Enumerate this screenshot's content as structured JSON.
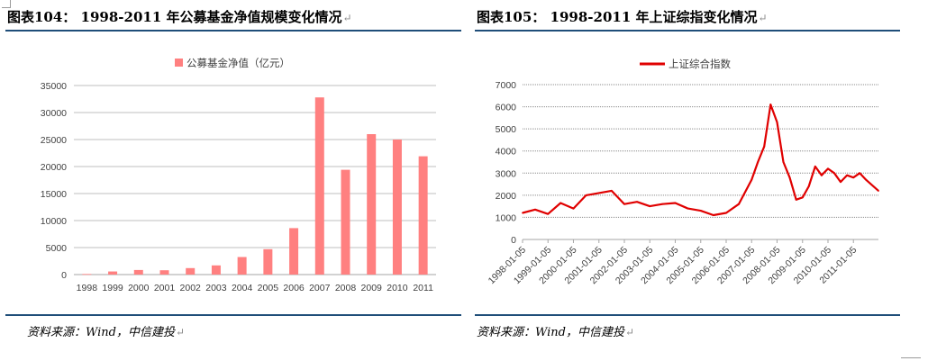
{
  "left_figure": {
    "title": "图表104： 1998-2011 年公募基金净值规模变化情况",
    "source": "资料来源：Wind，中信建投"
  },
  "right_figure": {
    "title": "图表105：  1998-2011 年上证综指变化情况",
    "source": "资料来源：Wind，中信建投"
  },
  "return_mark": "↵",
  "colors": {
    "bar": "#ff8080",
    "line": "#e00000",
    "rule": "#1f4e79",
    "grid": "#bfbfbf"
  },
  "chart_data": [
    {
      "type": "bar",
      "title": "",
      "legend": "公募基金净值（亿元）",
      "legend_position": "top",
      "categories": [
        "1998",
        "1999",
        "2000",
        "2001",
        "2002",
        "2003",
        "2004",
        "2005",
        "2006",
        "2007",
        "2008",
        "2009",
        "2010",
        "2011"
      ],
      "values": [
        105,
        575,
        850,
        800,
        1200,
        1700,
        3250,
        4700,
        8600,
        32800,
        19400,
        26000,
        25000,
        21900
      ],
      "ylim": [
        0,
        35000
      ],
      "yticks": [
        "0",
        "5000",
        "10000",
        "15000",
        "20000",
        "25000",
        "30000",
        "35000"
      ],
      "grid": true
    },
    {
      "type": "line",
      "title": "",
      "legend": "上证综合指数",
      "legend_position": "top",
      "x": [
        "1998-01-05",
        "1998-07-05",
        "1999-01-05",
        "1999-07-05",
        "2000-01-05",
        "2000-07-05",
        "2001-01-05",
        "2001-07-05",
        "2002-01-05",
        "2002-07-05",
        "2003-01-05",
        "2003-07-05",
        "2004-01-05",
        "2004-07-05",
        "2005-01-05",
        "2005-07-05",
        "2006-01-05",
        "2006-07-05",
        "2007-01-05",
        "2007-04-05",
        "2007-07-05",
        "2007-10-05",
        "2008-01-05",
        "2008-04-05",
        "2008-07-05",
        "2008-10-05",
        "2009-01-05",
        "2009-04-05",
        "2009-07-05",
        "2009-10-05",
        "2010-01-05",
        "2010-04-05",
        "2010-07-05",
        "2010-10-05",
        "2011-01-05",
        "2011-04-05",
        "2011-07-05",
        "2011-12-30"
      ],
      "y": [
        1200,
        1350,
        1150,
        1650,
        1400,
        2000,
        2100,
        2200,
        1600,
        1700,
        1500,
        1600,
        1650,
        1400,
        1300,
        1100,
        1200,
        1600,
        2700,
        3500,
        4200,
        6100,
        5300,
        3500,
        2800,
        1800,
        1900,
        2400,
        3300,
        2900,
        3200,
        3000,
        2600,
        2900,
        2800,
        3000,
        2700,
        2200
      ],
      "x_tick_labels": [
        "1998-01-05",
        "1999-01-05",
        "2000-01-05",
        "2001-01-05",
        "2002-01-05",
        "2003-01-05",
        "2004-01-05",
        "2005-01-05",
        "2006-01-05",
        "2007-01-05",
        "2008-01-05",
        "2009-01-05",
        "2010-01-05",
        "2011-01-05"
      ],
      "ylim": [
        0,
        7000
      ],
      "yticks": [
        "0",
        "1000",
        "2000",
        "3000",
        "4000",
        "5000",
        "6000",
        "7000"
      ],
      "grid": true
    }
  ]
}
